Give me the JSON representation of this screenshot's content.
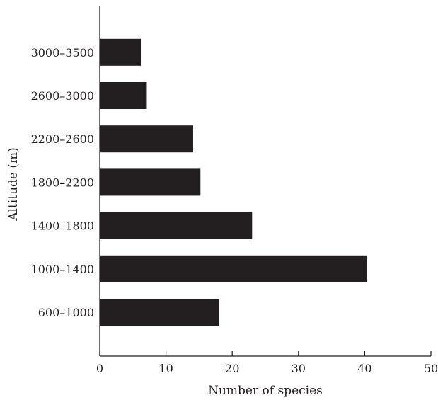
{
  "chart_data": {
    "type": "bar",
    "orientation": "horizontal",
    "categories": [
      "600–1000",
      "1000–1400",
      "1400–1800",
      "1800–2200",
      "2200–2600",
      "2600–3000",
      "3000–3500"
    ],
    "values": [
      18,
      40.3,
      23,
      15.2,
      14.1,
      7.1,
      6.2
    ],
    "xlabel": "Number of species",
    "ylabel": "Altitude (m)",
    "xlim": [
      0,
      50
    ],
    "xticks": [
      "0",
      "10",
      "20",
      "30",
      "40",
      "50"
    ],
    "grid": false,
    "bar_color": "#231f20"
  }
}
